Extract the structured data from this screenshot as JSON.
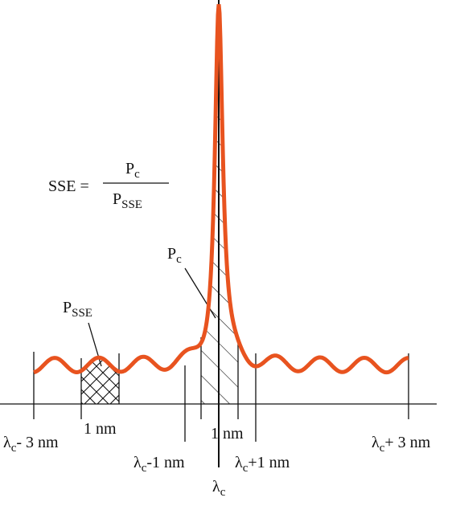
{
  "formula": {
    "lhs": "SSE =",
    "numerator": {
      "base": "P",
      "sub": "c"
    },
    "denominator": {
      "base": "P",
      "sub": "SSE"
    }
  },
  "labels": {
    "pc": {
      "base": "P",
      "sub": "c"
    },
    "psse": {
      "base": "P",
      "sub": "SSE"
    }
  },
  "axis": {
    "minus3": {
      "base": "λ",
      "sub": "c",
      "rest": "- 3 nm"
    },
    "one_nm_left": "1 nm",
    "minus1": {
      "base": "λ",
      "sub": "c",
      "rest": "-1 nm"
    },
    "one_nm_center": "1 nm",
    "plus1": {
      "base": "λ",
      "sub": "c",
      "rest": "+1 nm"
    },
    "plus3": {
      "base": "λ",
      "sub": "c",
      "rest": "+ 3 nm"
    },
    "center": {
      "base": "λ",
      "sub": "c"
    }
  }
}
